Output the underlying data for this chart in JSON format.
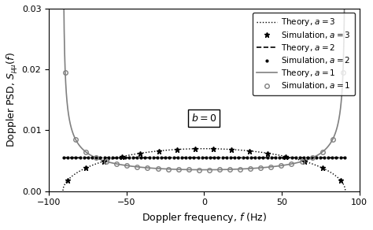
{
  "xlabel": "Doppler frequency, $f$ (Hz)",
  "ylabel": "Doppler PSD, $S_{\\mu\\mu}(f)$",
  "xlim": [
    -100,
    100
  ],
  "ylim": [
    0,
    0.03
  ],
  "yticks": [
    0,
    0.01,
    0.02,
    0.03
  ],
  "xticks": [
    -100,
    -50,
    0,
    50,
    100
  ],
  "fm": 91.0,
  "annotation": "$b = 0$",
  "figsize": [
    4.74,
    2.92
  ],
  "dpi": 100,
  "legend_labels": [
    "Theory, $a=3$",
    "Simulation, $a=3$",
    "Theory, $a=2$",
    "Simulation, $a=2$",
    "Theory, $a=1$",
    "Simulation, $a=1$"
  ]
}
